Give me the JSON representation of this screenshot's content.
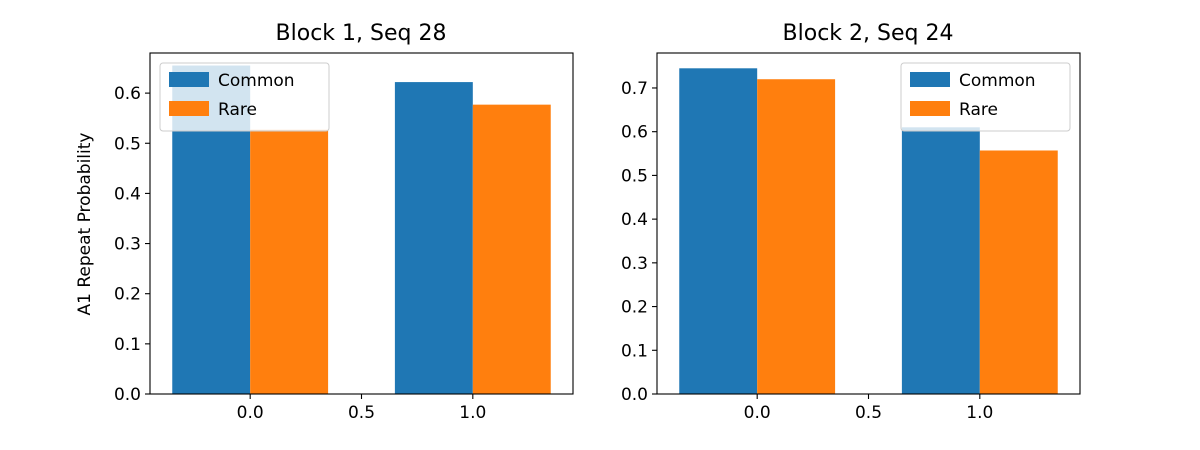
{
  "chart_data": [
    {
      "type": "bar",
      "title": "Block 1, Seq 28",
      "ylabel": "A1 Repeat Probability",
      "xlabel": "",
      "x": [
        0,
        1
      ],
      "xticks": [
        "0.0",
        "0.5",
        "1.0"
      ],
      "xlim": [
        -0.45,
        1.45
      ],
      "ylim": [
        0,
        0.68
      ],
      "yticks": [
        "0.0",
        "0.1",
        "0.2",
        "0.3",
        "0.4",
        "0.5",
        "0.6"
      ],
      "series": [
        {
          "name": "Common",
          "values": [
            0.655,
            0.622
          ],
          "color": "#1f77b4"
        },
        {
          "name": "Rare",
          "values": [
            0.527,
            0.577
          ],
          "color": "#ff7f0e"
        }
      ],
      "legend": "top-left",
      "grid": false
    },
    {
      "type": "bar",
      "title": "Block 2, Seq 24",
      "ylabel": "",
      "xlabel": "",
      "x": [
        0,
        1
      ],
      "xticks": [
        "0.0",
        "0.5",
        "1.0"
      ],
      "xlim": [
        -0.45,
        1.45
      ],
      "ylim": [
        0,
        0.78
      ],
      "yticks": [
        "0.0",
        "0.1",
        "0.2",
        "0.3",
        "0.4",
        "0.5",
        "0.6",
        "0.7"
      ],
      "series": [
        {
          "name": "Common",
          "values": [
            0.745,
            0.61
          ],
          "color": "#1f77b4"
        },
        {
          "name": "Rare",
          "values": [
            0.72,
            0.557
          ],
          "color": "#ff7f0e"
        }
      ],
      "legend": "top-right",
      "grid": false
    }
  ]
}
